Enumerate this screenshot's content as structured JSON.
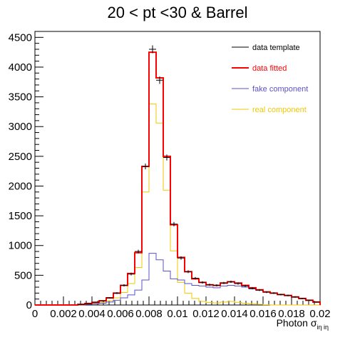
{
  "chart_data": {
    "type": "line",
    "title": "20 < pt <30 & Barrel",
    "xlabel": "Photon σ",
    "xlabel_sub": "iη iη",
    "xlim": [
      0,
      0.02
    ],
    "ylim": [
      0,
      4600
    ],
    "x_ticks": [
      {
        "value": 0,
        "label": "0"
      },
      {
        "value": 0.002,
        "label": "0.002"
      },
      {
        "value": 0.004,
        "label": "0.004"
      },
      {
        "value": 0.006,
        "label": "0.006"
      },
      {
        "value": 0.008,
        "label": "0.008"
      },
      {
        "value": 0.01,
        "label": "0.01"
      },
      {
        "value": 0.012,
        "label": "0.012"
      },
      {
        "value": 0.014,
        "label": "0.014"
      },
      {
        "value": 0.016,
        "label": "0.016"
      },
      {
        "value": 0.018,
        "label": "0.018"
      },
      {
        "value": 0.02,
        "label": "0.02"
      }
    ],
    "y_ticks": [
      {
        "value": 0,
        "label": "0"
      },
      {
        "value": 500,
        "label": "500"
      },
      {
        "value": 1000,
        "label": "1000"
      },
      {
        "value": 1500,
        "label": "1500"
      },
      {
        "value": 2000,
        "label": "2000"
      },
      {
        "value": 2500,
        "label": "2500"
      },
      {
        "value": 3000,
        "label": "3000"
      },
      {
        "value": 3500,
        "label": "3500"
      },
      {
        "value": 4000,
        "label": "4000"
      },
      {
        "value": 4500,
        "label": "4500"
      }
    ],
    "legend_position": "top-right",
    "bin_edges": [
      0,
      0.0005,
      0.001,
      0.0015,
      0.002,
      0.0025,
      0.003,
      0.0035,
      0.004,
      0.0045,
      0.005,
      0.0055,
      0.006,
      0.0065,
      0.007,
      0.0075,
      0.008,
      0.0085,
      0.009,
      0.0095,
      0.01,
      0.0105,
      0.011,
      0.0115,
      0.012,
      0.0125,
      0.013,
      0.0135,
      0.014,
      0.0145,
      0.015,
      0.0155,
      0.016,
      0.0165,
      0.017,
      0.0175,
      0.018,
      0.0185,
      0.019,
      0.0195,
      0.02
    ],
    "series": [
      {
        "name": "data template",
        "style": "markers",
        "color": "#000000",
        "values": [
          0,
          0,
          0,
          0,
          0,
          0,
          10,
          25,
          45,
          70,
          120,
          200,
          330,
          520,
          900,
          2330,
          4300,
          3780,
          2480,
          1360,
          790,
          560,
          450,
          380,
          340,
          330,
          370,
          390,
          360,
          320,
          280,
          250,
          215,
          200,
          175,
          160,
          135,
          110,
          80,
          50
        ]
      },
      {
        "name": "data fitted",
        "style": "step",
        "color": "#ff0000",
        "values": [
          0,
          0,
          0,
          0,
          0,
          0,
          10,
          25,
          45,
          70,
          120,
          200,
          330,
          530,
          880,
          2330,
          4250,
          3820,
          2500,
          1350,
          800,
          560,
          440,
          380,
          340,
          330,
          370,
          390,
          370,
          330,
          290,
          255,
          220,
          200,
          175,
          160,
          135,
          110,
          80,
          50
        ]
      },
      {
        "name": "fake component",
        "style": "step",
        "color": "#5a52c8",
        "values": [
          0,
          0,
          0,
          0,
          0,
          0,
          5,
          10,
          20,
          30,
          50,
          80,
          120,
          170,
          250,
          420,
          870,
          760,
          570,
          440,
          420,
          360,
          330,
          320,
          300,
          290,
          320,
          330,
          320,
          300,
          270,
          250,
          220,
          200,
          175,
          160,
          135,
          110,
          80,
          50
        ]
      },
      {
        "name": "real component",
        "style": "step",
        "color": "#f0c800",
        "values": [
          0,
          0,
          0,
          0,
          0,
          0,
          5,
          15,
          25,
          40,
          70,
          120,
          210,
          360,
          630,
          1900,
          3380,
          3060,
          1930,
          910,
          380,
          200,
          110,
          60,
          40,
          35,
          50,
          60,
          45,
          30,
          20,
          10,
          5,
          0,
          0,
          0,
          0,
          0,
          0,
          0
        ]
      }
    ]
  }
}
